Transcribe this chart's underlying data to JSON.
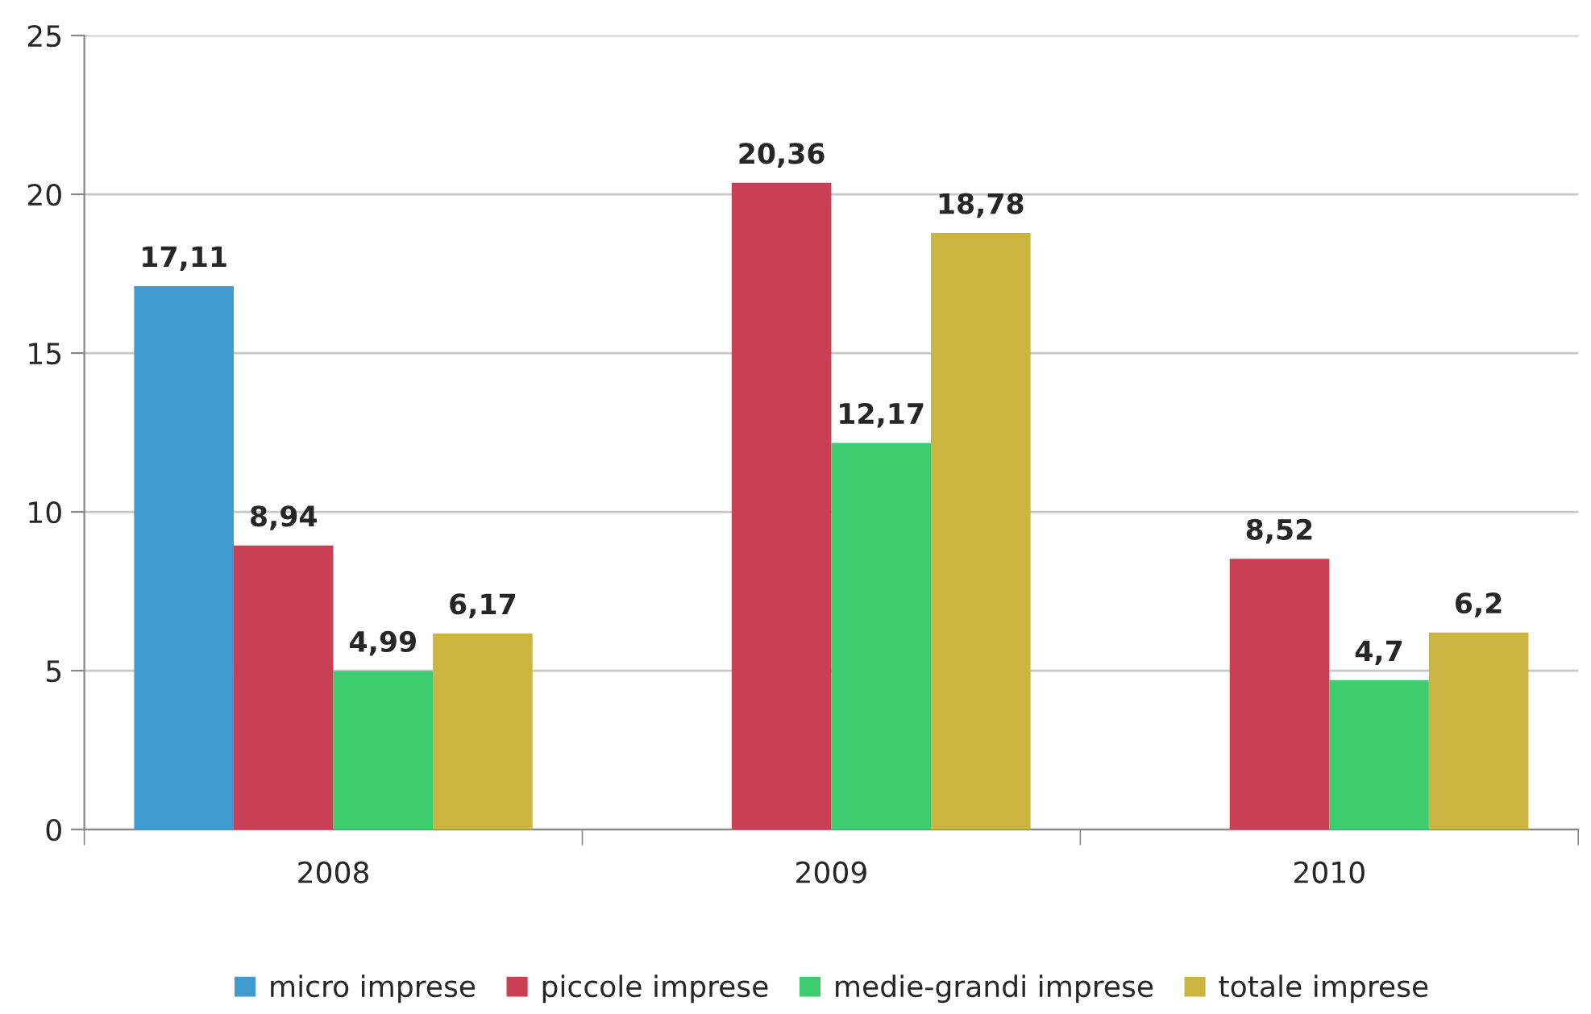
{
  "chart_data": {
    "type": "bar",
    "categories": [
      "2008",
      "2009",
      "2010"
    ],
    "series": [
      {
        "name": "micro imprese",
        "color": "#3f9bd0",
        "values": [
          17.11,
          null,
          null
        ],
        "value_labels": [
          "17,11",
          null,
          null
        ]
      },
      {
        "name": "piccole imprese",
        "color": "#c94055",
        "values": [
          8.94,
          20.36,
          8.52
        ],
        "value_labels": [
          "8,94",
          "20,36",
          "8,52"
        ]
      },
      {
        "name": "medie-grandi imprese",
        "color": "#3fcc70",
        "values": [
          4.99,
          12.17,
          4.7
        ],
        "value_labels": [
          "4,99",
          "12,17",
          "4,7"
        ]
      },
      {
        "name": "totale imprese",
        "color": "#cbb43f",
        "values": [
          6.17,
          18.78,
          6.2
        ],
        "value_labels": [
          "6,17",
          "18,78",
          "6,2"
        ]
      }
    ],
    "ylim": [
      0,
      25
    ],
    "yticks": [
      0,
      5,
      10,
      15,
      20,
      25
    ],
    "grid": "y",
    "legend": "bottom"
  }
}
